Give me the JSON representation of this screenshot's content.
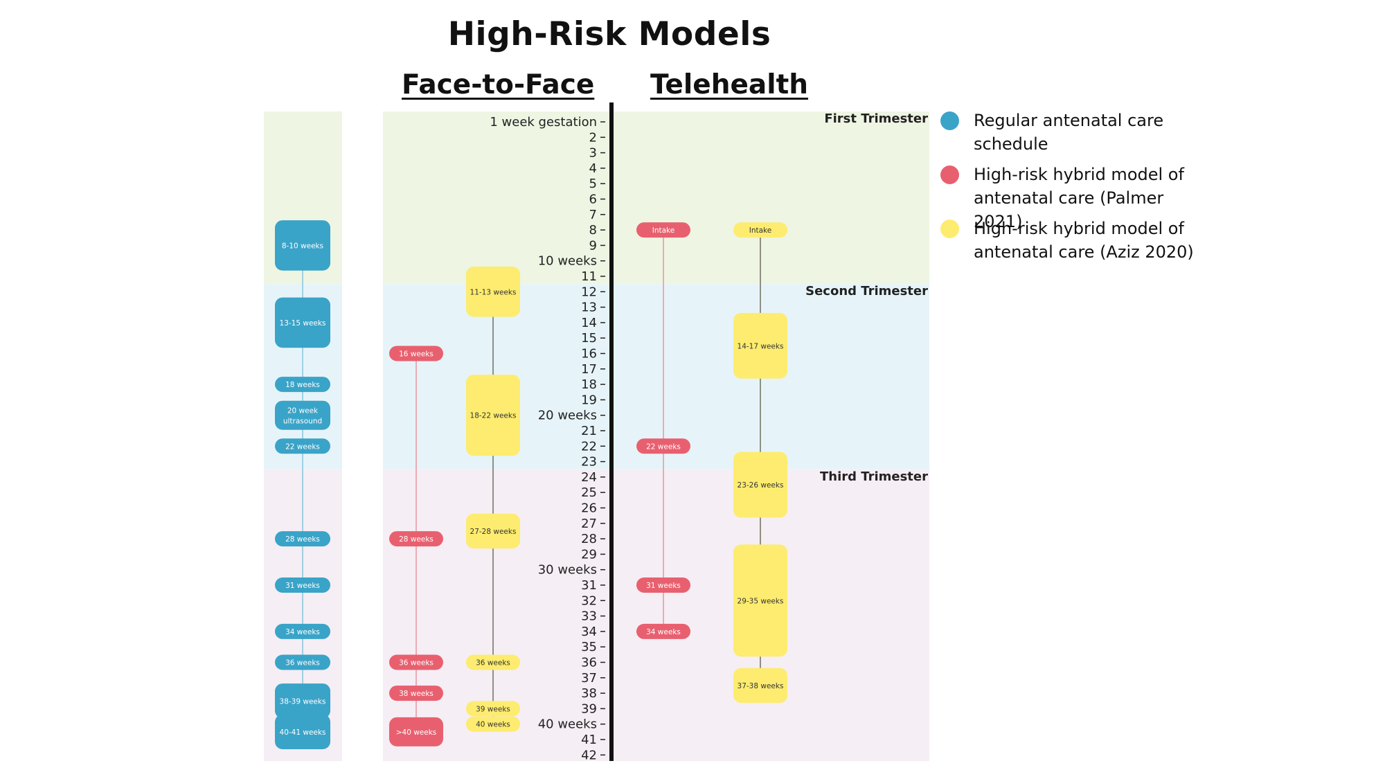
{
  "title": "High-Risk Models",
  "column_headers": {
    "face_to_face": "Face-to-Face",
    "telehealth": "Telehealth"
  },
  "trimesters": [
    {
      "label": "First Trimester",
      "from_week": 1,
      "to_week": 11,
      "color": "#eef5e3"
    },
    {
      "label": "Second Trimester",
      "from_week": 11,
      "to_week": 23,
      "color": "#e6f4f9"
    },
    {
      "label": "Third Trimester",
      "from_week": 23,
      "to_week": 42,
      "color": "#f5eef4"
    }
  ],
  "axis": {
    "ticks": [
      {
        "week": 1,
        "label": "1 week gestation"
      },
      {
        "week": 2,
        "label": "2"
      },
      {
        "week": 3,
        "label": "3"
      },
      {
        "week": 4,
        "label": "4"
      },
      {
        "week": 5,
        "label": "5"
      },
      {
        "week": 6,
        "label": "6"
      },
      {
        "week": 7,
        "label": "7"
      },
      {
        "week": 8,
        "label": "8"
      },
      {
        "week": 9,
        "label": "9"
      },
      {
        "week": 10,
        "label": "10 weeks"
      },
      {
        "week": 11,
        "label": "11"
      },
      {
        "week": 12,
        "label": "12"
      },
      {
        "week": 13,
        "label": "13"
      },
      {
        "week": 14,
        "label": "14"
      },
      {
        "week": 15,
        "label": "15"
      },
      {
        "week": 16,
        "label": "16"
      },
      {
        "week": 17,
        "label": "17"
      },
      {
        "week": 18,
        "label": "18"
      },
      {
        "week": 19,
        "label": "19"
      },
      {
        "week": 20,
        "label": "20 weeks"
      },
      {
        "week": 21,
        "label": "21"
      },
      {
        "week": 22,
        "label": "22"
      },
      {
        "week": 23,
        "label": "23"
      },
      {
        "week": 24,
        "label": "24"
      },
      {
        "week": 25,
        "label": "25"
      },
      {
        "week": 26,
        "label": "26"
      },
      {
        "week": 27,
        "label": "27"
      },
      {
        "week": 28,
        "label": "28"
      },
      {
        "week": 29,
        "label": "29"
      },
      {
        "week": 30,
        "label": "30 weeks"
      },
      {
        "week": 31,
        "label": "31"
      },
      {
        "week": 32,
        "label": "32"
      },
      {
        "week": 33,
        "label": "33"
      },
      {
        "week": 34,
        "label": "34"
      },
      {
        "week": 35,
        "label": "35"
      },
      {
        "week": 36,
        "label": "36"
      },
      {
        "week": 37,
        "label": "37"
      },
      {
        "week": 38,
        "label": "38"
      },
      {
        "week": 39,
        "label": "39"
      },
      {
        "week": 40,
        "label": "40 weeks"
      },
      {
        "week": 41,
        "label": "41"
      },
      {
        "week": 42,
        "label": "42"
      }
    ]
  },
  "legend": [
    {
      "key": "regular",
      "label": "Regular antenatal care schedule",
      "color": "#3aa3c8"
    },
    {
      "key": "palmer",
      "label": "High-risk hybrid model of antenatal care (Palmer 2021)",
      "color": "#e8606f"
    },
    {
      "key": "aziz",
      "label": "High-risk hybrid model of antenatal care (Aziz 2020)",
      "color": "#fdec6f"
    }
  ],
  "timelines": {
    "regular": [
      {
        "label": "8-10 weeks",
        "from": 8,
        "to": 10
      },
      {
        "label": "13-15 weeks",
        "from": 13,
        "to": 15
      },
      {
        "label": "18 weeks",
        "at": 18
      },
      {
        "label": "20 week ultrasound",
        "at": 20,
        "tall": true
      },
      {
        "label": "22 weeks",
        "at": 22
      },
      {
        "label": "28 weeks",
        "at": 28
      },
      {
        "label": "31 weeks",
        "at": 31
      },
      {
        "label": "34 weeks",
        "at": 34
      },
      {
        "label": "36 weeks",
        "at": 36
      },
      {
        "label": "38-39 weeks",
        "from": 38,
        "to": 39
      },
      {
        "label": "40-41 weeks",
        "from": 40,
        "to": 41
      }
    ],
    "palmer_face": [
      {
        "label": "16 weeks",
        "at": 16
      },
      {
        "label": "28 weeks",
        "at": 28
      },
      {
        "label": "36 weeks",
        "at": 36
      },
      {
        "label": "38 weeks",
        "at": 38
      },
      {
        "label": ">40 weeks",
        "at": 40.5,
        "tall": true
      }
    ],
    "aziz_face": [
      {
        "label": "11-13 weeks",
        "from": 11,
        "to": 13
      },
      {
        "label": "18-22 weeks",
        "from": 18,
        "to": 22
      },
      {
        "label": "27-28 weeks",
        "from": 27,
        "to": 28
      },
      {
        "label": "36 weeks",
        "at": 36
      },
      {
        "label": "39 weeks",
        "at": 39
      },
      {
        "label": "40 weeks",
        "at": 40
      }
    ],
    "palmer_tele": [
      {
        "label": "Intake",
        "at": 8
      },
      {
        "label": "22 weeks",
        "at": 22
      },
      {
        "label": "31 weeks",
        "at": 31
      },
      {
        "label": "34 weeks",
        "at": 34
      }
    ],
    "aziz_tele": [
      {
        "label": "Intake",
        "at": 8
      },
      {
        "label": "14-17 weeks",
        "from": 14,
        "to": 17
      },
      {
        "label": "23-26 weeks",
        "from": 23,
        "to": 26
      },
      {
        "label": "29-35 weeks",
        "from": 29,
        "to": 35
      },
      {
        "label": "37-38 weeks",
        "from": 37,
        "to": 38
      }
    ]
  }
}
